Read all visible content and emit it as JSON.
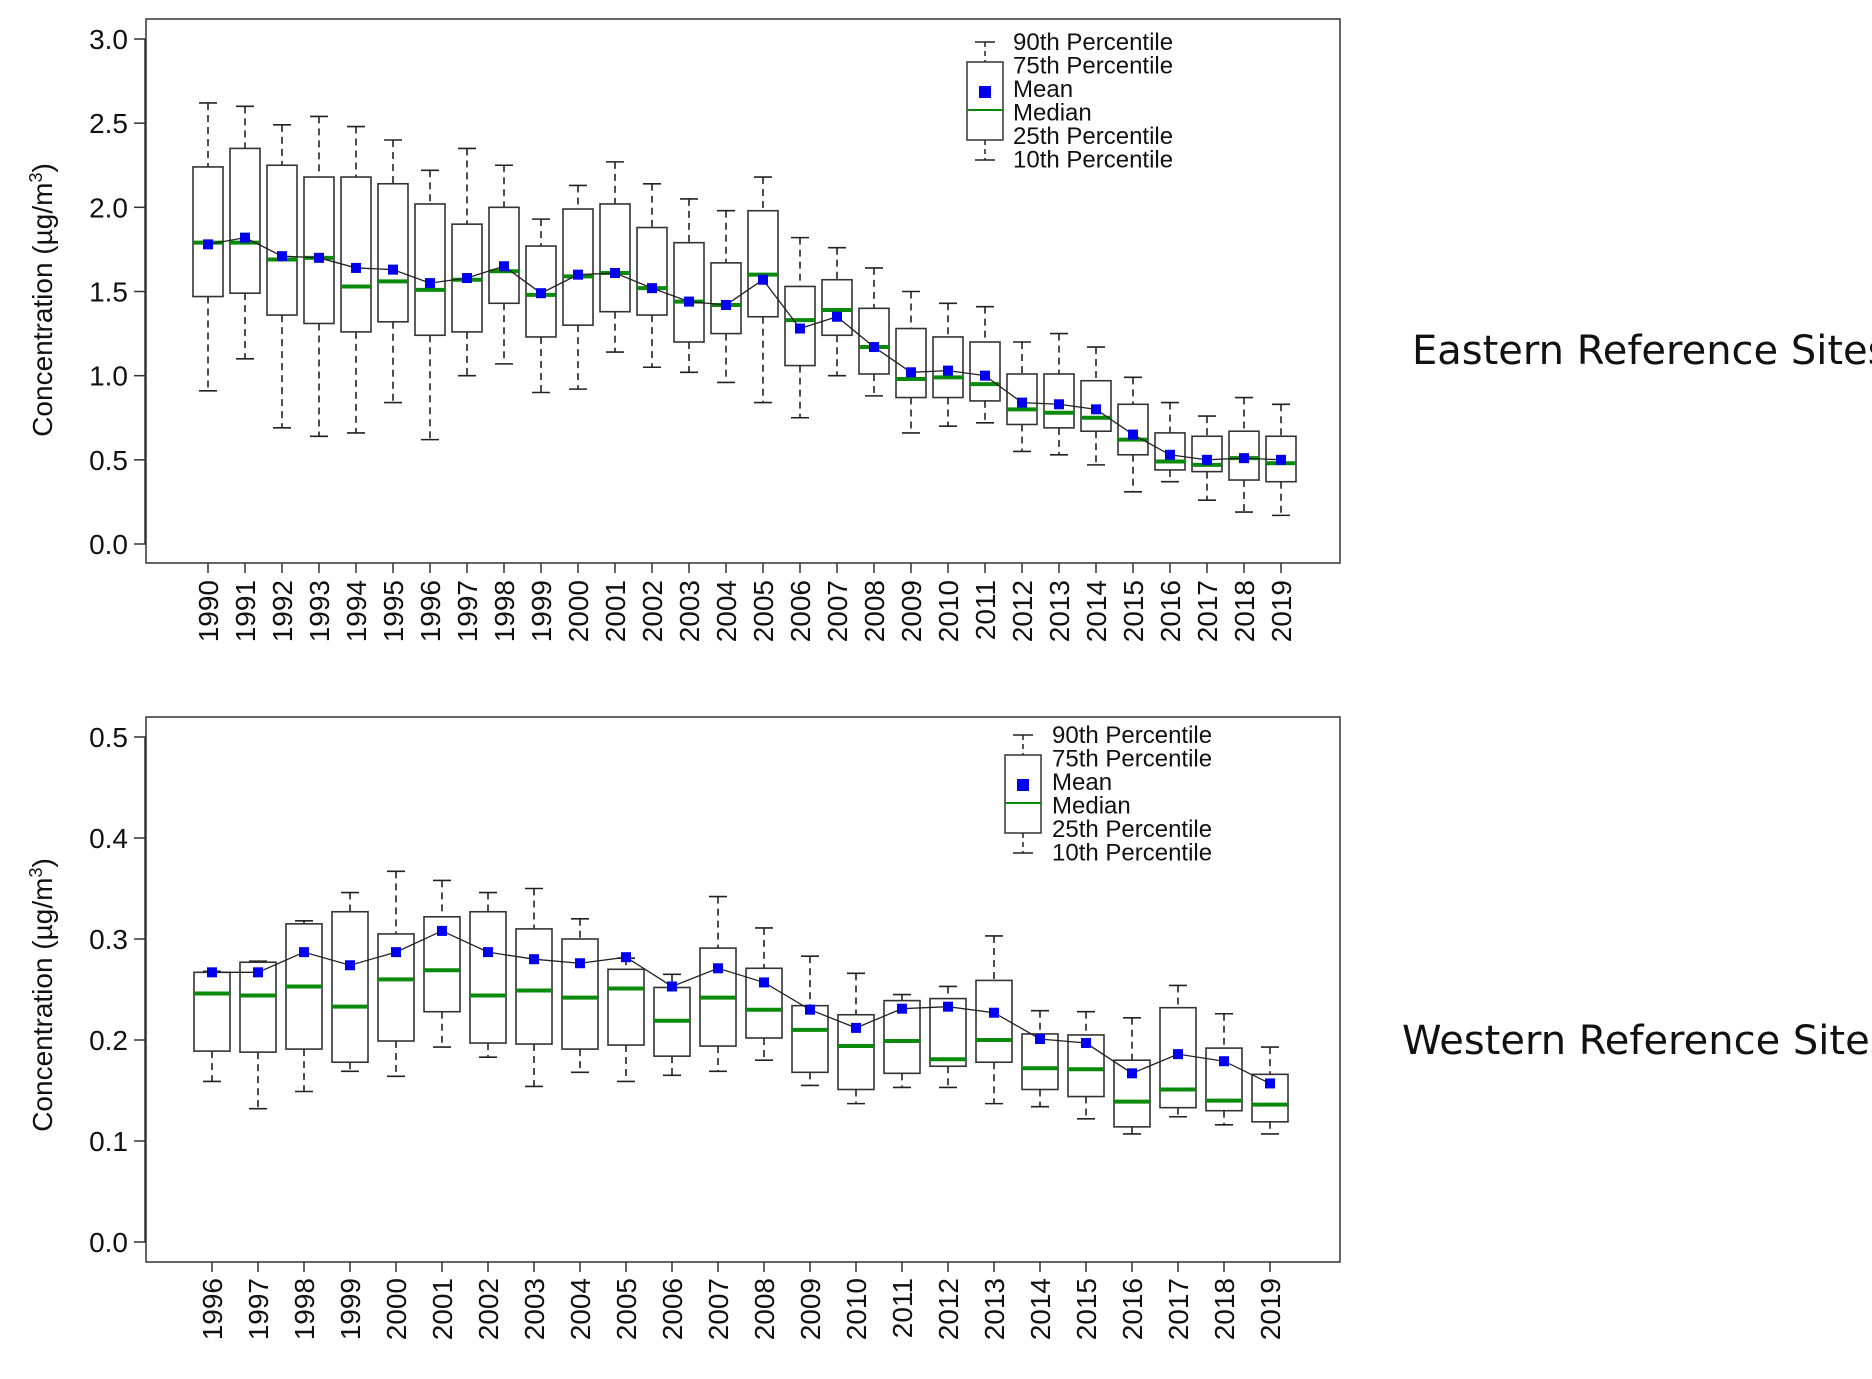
{
  "chart_data": [
    {
      "type": "boxplot",
      "panel_label": "Eastern Reference Sites",
      "ylabel": "Concentration (µg/m",
      "ylabel_sup": "3",
      "ylabel_close": ")",
      "ylim": [
        0.0,
        3.0
      ],
      "yticks": [
        "0.0",
        "0.5",
        "1.0",
        "1.5",
        "2.0",
        "2.5",
        "3.0"
      ],
      "ytick_values": [
        0.0,
        0.5,
        1.0,
        1.5,
        2.0,
        2.5,
        3.0
      ],
      "grid": false,
      "legend_position": "top-right",
      "legend": [
        "90th Percentile",
        "75th Percentile",
        "Mean",
        "Median",
        "25th Percentile",
        "10th Percentile"
      ],
      "categories": [
        "1990",
        "1991",
        "1992",
        "1993",
        "1994",
        "1995",
        "1996",
        "1997",
        "1998",
        "1999",
        "2000",
        "2001",
        "2002",
        "2003",
        "2004",
        "2005",
        "2006",
        "2007",
        "2008",
        "2009",
        "2010",
        "2011",
        "2012",
        "2013",
        "2014",
        "2015",
        "2016",
        "2017",
        "2018",
        "2019"
      ],
      "p10": [
        0.91,
        1.1,
        0.69,
        0.64,
        0.66,
        0.84,
        0.62,
        1.0,
        1.07,
        0.9,
        0.92,
        1.14,
        1.05,
        1.02,
        0.96,
        0.84,
        0.75,
        1.0,
        0.88,
        0.66,
        0.7,
        0.72,
        0.55,
        0.53,
        0.47,
        0.31,
        0.37,
        0.26,
        0.19,
        0.17
      ],
      "p25": [
        1.47,
        1.49,
        1.36,
        1.31,
        1.26,
        1.32,
        1.24,
        1.26,
        1.43,
        1.23,
        1.3,
        1.38,
        1.36,
        1.2,
        1.25,
        1.35,
        1.06,
        1.24,
        1.01,
        0.87,
        0.87,
        0.85,
        0.71,
        0.69,
        0.67,
        0.53,
        0.44,
        0.43,
        0.38,
        0.37
      ],
      "median": [
        1.79,
        1.79,
        1.69,
        1.7,
        1.53,
        1.56,
        1.51,
        1.57,
        1.62,
        1.48,
        1.59,
        1.61,
        1.52,
        1.44,
        1.42,
        1.6,
        1.33,
        1.39,
        1.17,
        0.98,
        0.99,
        0.95,
        0.8,
        0.78,
        0.75,
        0.62,
        0.49,
        0.47,
        0.51,
        0.48
      ],
      "mean": [
        1.78,
        1.82,
        1.71,
        1.7,
        1.64,
        1.63,
        1.55,
        1.58,
        1.65,
        1.49,
        1.6,
        1.61,
        1.52,
        1.44,
        1.42,
        1.57,
        1.28,
        1.35,
        1.17,
        1.02,
        1.03,
        1.0,
        0.84,
        0.83,
        0.8,
        0.65,
        0.53,
        0.5,
        0.51,
        0.5
      ],
      "p75": [
        2.24,
        2.35,
        2.25,
        2.18,
        2.18,
        2.14,
        2.02,
        1.9,
        2.0,
        1.77,
        1.99,
        2.02,
        1.88,
        1.79,
        1.67,
        1.98,
        1.53,
        1.57,
        1.4,
        1.28,
        1.23,
        1.2,
        1.01,
        1.01,
        0.97,
        0.83,
        0.66,
        0.64,
        0.67,
        0.64
      ],
      "p90": [
        2.62,
        2.6,
        2.49,
        2.54,
        2.48,
        2.4,
        2.22,
        2.35,
        2.25,
        1.93,
        2.13,
        2.27,
        2.14,
        2.05,
        1.98,
        2.18,
        1.82,
        1.76,
        1.64,
        1.5,
        1.43,
        1.41,
        1.2,
        1.25,
        1.17,
        0.99,
        0.84,
        0.76,
        0.87,
        0.83
      ]
    },
    {
      "type": "boxplot",
      "panel_label": "Western Reference Sites",
      "ylabel": "Concentration (µg/m",
      "ylabel_sup": "3",
      "ylabel_close": ")",
      "ylim": [
        0.0,
        0.5
      ],
      "yticks": [
        "0.0",
        "0.1",
        "0.2",
        "0.3",
        "0.4",
        "0.5"
      ],
      "ytick_values": [
        0.0,
        0.1,
        0.2,
        0.3,
        0.4,
        0.5
      ],
      "grid": false,
      "legend_position": "top-right",
      "legend": [
        "90th Percentile",
        "75th Percentile",
        "Mean",
        "Median",
        "25th Percentile",
        "10th Percentile"
      ],
      "categories": [
        "1996",
        "1997",
        "1998",
        "1999",
        "2000",
        "2001",
        "2002",
        "2003",
        "2004",
        "2005",
        "2006",
        "2007",
        "2008",
        "2009",
        "2010",
        "2011",
        "2012",
        "2013",
        "2014",
        "2015",
        "2016",
        "2017",
        "2018",
        "2019"
      ],
      "p10": [
        0.159,
        0.132,
        0.149,
        0.169,
        0.164,
        0.193,
        0.183,
        0.154,
        0.168,
        0.159,
        0.165,
        0.169,
        0.18,
        0.155,
        0.137,
        0.153,
        0.153,
        0.137,
        0.134,
        0.122,
        0.107,
        0.124,
        0.116,
        0.107
      ],
      "p25": [
        0.189,
        0.188,
        0.191,
        0.178,
        0.199,
        0.228,
        0.197,
        0.196,
        0.191,
        0.195,
        0.184,
        0.194,
        0.202,
        0.168,
        0.151,
        0.167,
        0.174,
        0.178,
        0.151,
        0.144,
        0.114,
        0.133,
        0.13,
        0.119
      ],
      "median": [
        0.246,
        0.244,
        0.253,
        0.233,
        0.26,
        0.269,
        0.244,
        0.249,
        0.242,
        0.251,
        0.219,
        0.242,
        0.23,
        0.21,
        0.194,
        0.199,
        0.181,
        0.2,
        0.172,
        0.171,
        0.139,
        0.151,
        0.14,
        0.136
      ],
      "mean": [
        0.267,
        0.267,
        0.287,
        0.274,
        0.287,
        0.308,
        0.287,
        0.28,
        0.276,
        0.282,
        0.253,
        0.271,
        0.257,
        0.23,
        0.212,
        0.231,
        0.233,
        0.227,
        0.201,
        0.197,
        0.167,
        0.186,
        0.179,
        0.157
      ],
      "p75": [
        0.267,
        0.277,
        0.315,
        0.327,
        0.305,
        0.322,
        0.327,
        0.31,
        0.3,
        0.27,
        0.252,
        0.291,
        0.271,
        0.234,
        0.225,
        0.239,
        0.241,
        0.259,
        0.206,
        0.205,
        0.18,
        0.232,
        0.192,
        0.166
      ],
      "p90": [
        0.268,
        0.278,
        0.318,
        0.346,
        0.367,
        0.358,
        0.346,
        0.35,
        0.32,
        0.281,
        0.265,
        0.342,
        0.311,
        0.283,
        0.266,
        0.245,
        0.253,
        0.303,
        0.229,
        0.228,
        0.222,
        0.254,
        0.226,
        0.193
      ]
    }
  ]
}
